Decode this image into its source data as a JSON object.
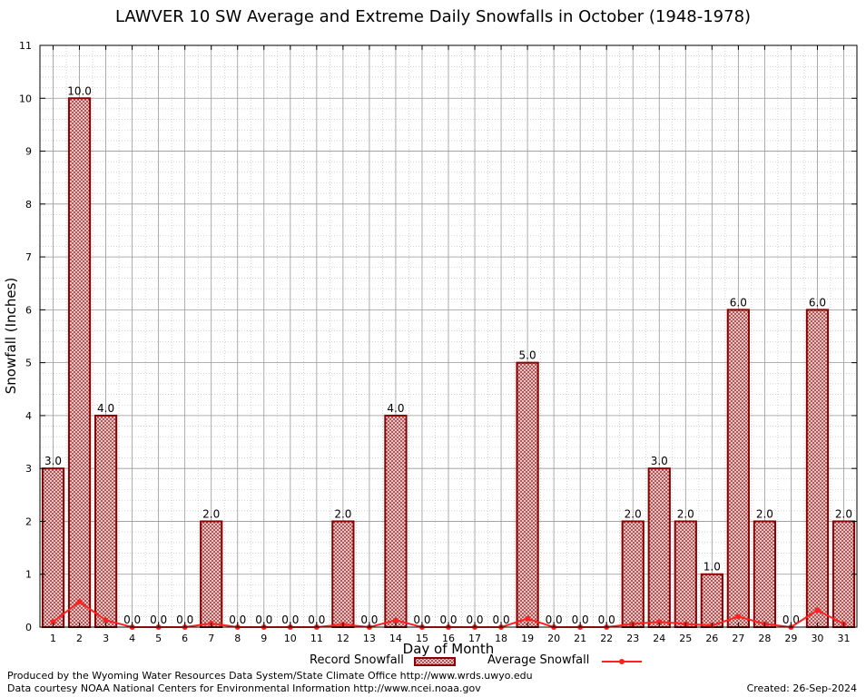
{
  "chart_data": {
    "type": "bar",
    "title": "LAWVER 10 SW Average and Extreme Daily Snowfalls in October (1948-1978)",
    "xlabel": "Day of Month",
    "ylabel": "Snowfall (Inches)",
    "ylim": [
      0,
      11
    ],
    "yticks": [
      0,
      1,
      2,
      3,
      4,
      5,
      6,
      7,
      8,
      9,
      10,
      11
    ],
    "grid": true,
    "legend_position": "bottom",
    "categories": [
      "1",
      "2",
      "3",
      "4",
      "5",
      "6",
      "7",
      "8",
      "9",
      "10",
      "11",
      "12",
      "13",
      "14",
      "15",
      "16",
      "17",
      "18",
      "19",
      "20",
      "21",
      "22",
      "23",
      "24",
      "25",
      "26",
      "27",
      "28",
      "29",
      "30",
      "31"
    ],
    "series": [
      {
        "name": "Record Snowfall",
        "type": "bar",
        "color": "#8b0000",
        "values": [
          3.0,
          10.0,
          4.0,
          0.0,
          0.0,
          0.0,
          2.0,
          0.0,
          0.0,
          0.0,
          0.0,
          2.0,
          0.0,
          4.0,
          0.0,
          0.0,
          0.0,
          0.0,
          5.0,
          0.0,
          0.0,
          0.0,
          2.0,
          3.0,
          2.0,
          1.0,
          6.0,
          2.0,
          0.0,
          6.0,
          2.0
        ],
        "labels": [
          "3.0",
          "10.0",
          "4.0",
          "0.0",
          "0.0",
          "0.0",
          "2.0",
          "0.0",
          "0.0",
          "0.0",
          "0.0",
          "2.0",
          "0.0",
          "4.0",
          "0.0",
          "0.0",
          "0.0",
          "0.0",
          "5.0",
          "0.0",
          "0.0",
          "0.0",
          "2.0",
          "3.0",
          "2.0",
          "1.0",
          "6.0",
          "2.0",
          "0.0",
          "6.0",
          "2.0"
        ]
      },
      {
        "name": "Average Snowfall",
        "type": "line",
        "color": "#ff2020",
        "values": [
          0.1,
          0.48,
          0.13,
          0.0,
          0.0,
          0.0,
          0.07,
          0.0,
          0.0,
          0.0,
          0.0,
          0.05,
          0.0,
          0.13,
          0.0,
          0.0,
          0.0,
          0.0,
          0.16,
          0.0,
          0.0,
          0.0,
          0.06,
          0.1,
          0.06,
          0.03,
          0.2,
          0.06,
          0.0,
          0.32,
          0.06
        ]
      }
    ]
  },
  "footer": {
    "line1": "Produced by the Wyoming Water Resources Data System/State Climate Office http://www.wrds.uwyo.edu",
    "line2": "Data courtesy NOAA National Centers for Environmental Information http://www.ncei.noaa.gov",
    "created": "Created:  26-Sep-2024"
  }
}
